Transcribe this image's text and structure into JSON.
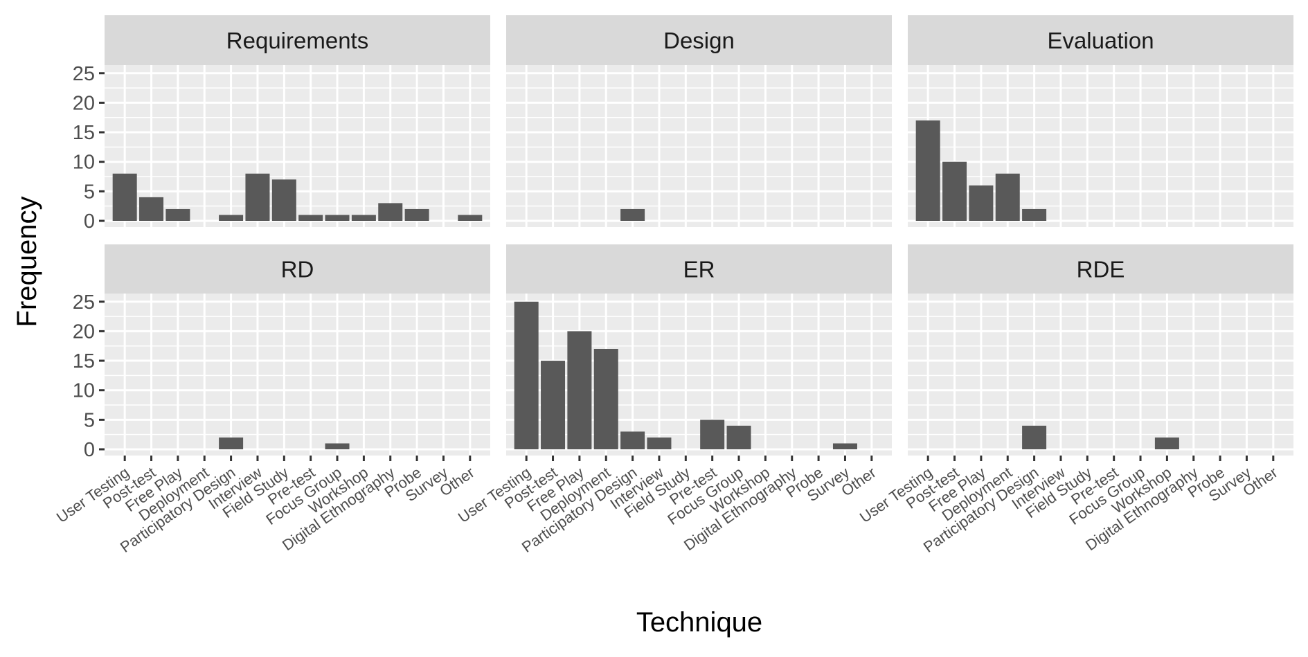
{
  "chart_data": {
    "type": "bar",
    "xlabel": "Technique",
    "ylabel": "Frequency",
    "ylim": [
      0,
      28
    ],
    "yticks": [
      "0",
      "5",
      "10",
      "15",
      "20",
      "25"
    ],
    "categories": [
      "User Testing",
      "Post-test",
      "Free Play",
      "Deployment",
      "Participatory Design",
      "Interview",
      "Field Study",
      "Pre-test",
      "Focus Group",
      "Workshop",
      "Digital Ethnography",
      "Probe",
      "Survey",
      "Other"
    ],
    "facet_rows": 2,
    "facet_cols": 3,
    "grid": true,
    "panels": [
      {
        "title": "Requirements",
        "values": [
          8,
          4,
          2,
          0,
          1,
          8,
          7,
          1,
          1,
          1,
          3,
          2,
          0,
          1
        ]
      },
      {
        "title": "Design",
        "values": [
          0,
          0,
          0,
          0,
          2,
          0,
          0,
          0,
          0,
          0,
          0,
          0,
          0,
          0
        ]
      },
      {
        "title": "Evaluation",
        "values": [
          17,
          10,
          6,
          8,
          2,
          0,
          0,
          0,
          0,
          0,
          0,
          0,
          0,
          0
        ]
      },
      {
        "title": "RD",
        "values": [
          0,
          0,
          0,
          0,
          2,
          0,
          0,
          0,
          1,
          0,
          0,
          0,
          0,
          0
        ]
      },
      {
        "title": "ER",
        "values": [
          25,
          15,
          20,
          17,
          3,
          2,
          0,
          5,
          4,
          0,
          0,
          0,
          1,
          0
        ]
      },
      {
        "title": "RDE",
        "values": [
          0,
          0,
          0,
          0,
          4,
          0,
          0,
          0,
          0,
          2,
          0,
          0,
          0,
          0
        ]
      }
    ],
    "colors": {
      "bar": "#595959",
      "panel_bg": "#ebebeb",
      "strip_bg": "#d9d9d9",
      "grid": "#ffffff",
      "text": "#1a1a1a",
      "tick_text": "#4d4d4d",
      "tick": "#333333"
    }
  }
}
